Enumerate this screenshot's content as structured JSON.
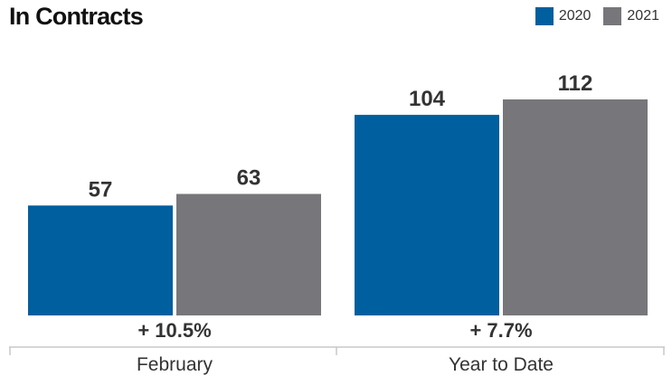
{
  "title": "In Contracts",
  "colors": {
    "series_2020": "#005f9e",
    "series_2021": "#77767a",
    "axis": "#c8c8c8",
    "text": "#333333"
  },
  "chart_data": {
    "type": "bar",
    "title": "In Contracts",
    "categories": [
      "February",
      "Year to Date"
    ],
    "series": [
      {
        "name": "2020",
        "values": [
          57,
          104
        ]
      },
      {
        "name": "2021",
        "values": [
          63,
          112
        ]
      }
    ],
    "changes": [
      "+ 10.5%",
      "+ 7.7%"
    ],
    "ylim": [
      0,
      112
    ],
    "legend_position": "top-right",
    "grid": false,
    "xlabel": "",
    "ylabel": ""
  }
}
